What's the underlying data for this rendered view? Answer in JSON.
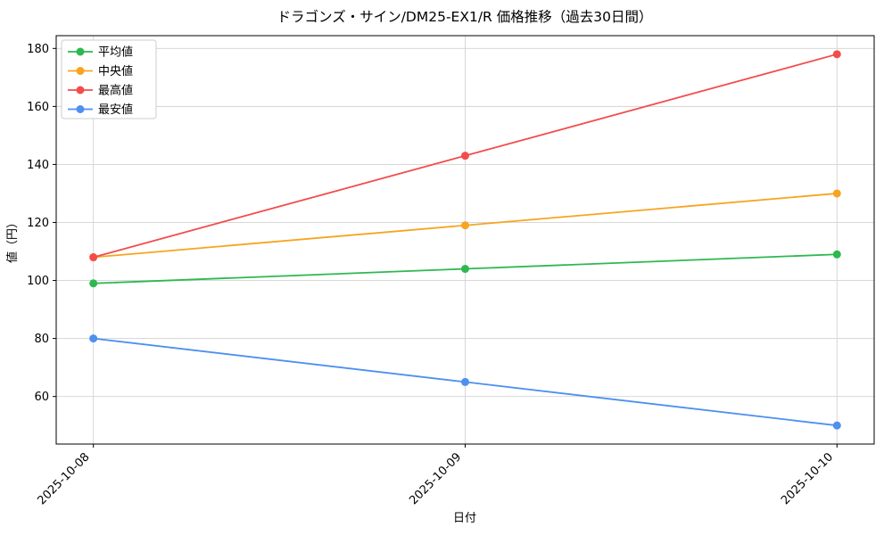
{
  "chart_data": {
    "type": "line",
    "title": "ドラゴンズ・サイン/DM25-EX1/R 価格推移（過去30日間）",
    "xlabel": "日付",
    "ylabel": "値（円）",
    "categories": [
      "2025-10-08",
      "2025-10-09",
      "2025-10-10"
    ],
    "series": [
      {
        "name": "平均値",
        "color": "#2eb850",
        "values": [
          99,
          104,
          109
        ]
      },
      {
        "name": "中央値",
        "color": "#f7a421",
        "values": [
          108,
          119,
          130
        ]
      },
      {
        "name": "最高値",
        "color": "#f44c4c",
        "values": [
          108,
          143,
          178
        ]
      },
      {
        "name": "最安値",
        "color": "#4d90f0",
        "values": [
          80,
          65,
          50
        ]
      }
    ],
    "yticks": [
      60,
      80,
      100,
      120,
      140,
      160,
      180
    ],
    "ylim": [
      43.6,
      184.4
    ],
    "xlim": [
      -0.1,
      2.1
    ],
    "grid": true,
    "legend_position": "upper left",
    "colors": {
      "grid": "#d3d3d3",
      "plot_border": "#000000",
      "legend_border": "#cccccc",
      "background": "#ffffff"
    }
  }
}
